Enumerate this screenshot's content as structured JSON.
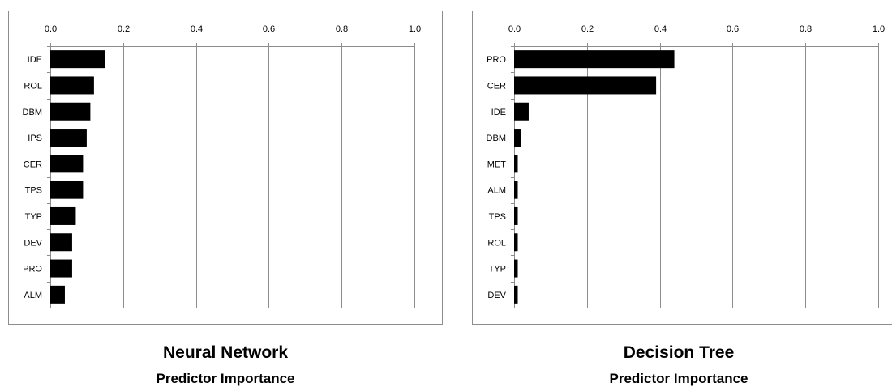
{
  "chart_data": [
    {
      "type": "bar",
      "orientation": "horizontal",
      "categories": [
        "IDE",
        "ROL",
        "DBM",
        "IPS",
        "CER",
        "TPS",
        "TYP",
        "DEV",
        "PRO",
        "ALM"
      ],
      "values": [
        0.15,
        0.12,
        0.11,
        0.1,
        0.09,
        0.09,
        0.07,
        0.06,
        0.06,
        0.04
      ],
      "x_ticks": [
        "0.0",
        "0.2",
        "0.4",
        "0.6",
        "0.8",
        "1.0"
      ],
      "xlim": [
        0,
        1.0
      ],
      "grid": "vertical",
      "bar_color": "#000000",
      "title": "Neural Network",
      "subtitle": "Predictor Importance"
    },
    {
      "type": "bar",
      "orientation": "horizontal",
      "categories": [
        "PRO",
        "CER",
        "IDE",
        "DBM",
        "MET",
        "ALM",
        "TPS",
        "ROL",
        "TYP",
        "DEV"
      ],
      "values": [
        0.44,
        0.39,
        0.04,
        0.02,
        0.01,
        0.01,
        0.01,
        0.01,
        0.01,
        0.01
      ],
      "x_ticks": [
        "0.0",
        "0.2",
        "0.4",
        "0.6",
        "0.8",
        "1.0"
      ],
      "xlim": [
        0,
        1.0
      ],
      "grid": "vertical",
      "bar_color": "#000000",
      "title": "Decision Tree",
      "subtitle": "Predictor Importance"
    }
  ]
}
